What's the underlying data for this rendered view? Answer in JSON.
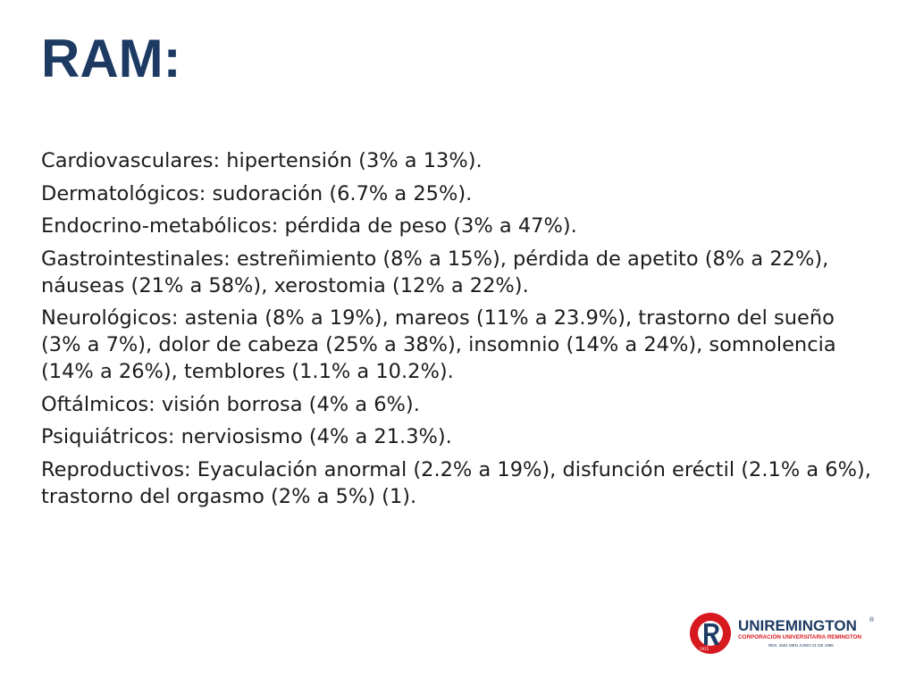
{
  "slide": {
    "title": "RAM:",
    "paragraphs": [
      "Cardiovasculares: hipertensión (3% a 13%).",
      "Dermatológicos: sudoración (6.7% a 25%).",
      "Endocrino-metabólicos: pérdida de peso (3% a 47%).",
      "Gastrointestinales: estreñimiento (8% a 15%), pérdida de apetito (8% a 22%), náuseas (21% a 58%), xerostomia (12% a 22%).",
      "Neurológicos: astenia (8% a 19%), mareos (11% a 23.9%), trastorno del sueño (3% a 7%), dolor de cabeza (25% a 38%), insomnio (14% a 24%), somnolencia (14% a 26%), temblores (1.1% a 10.2%).",
      "Oftálmicos: visión borrosa (4% a 6%).",
      "Psiquiátricos: nerviosismo (4% a 21.3%).",
      "Reproductivos: Eyaculación anormal (2.2% a 19%), disfunción eréctil (2.1% a 6%), trastorno del orgasmo (2% a 5%) (1)."
    ]
  },
  "logo": {
    "name": "UNIREMINGTON",
    "registered": "®",
    "subtitle": "CORPORACIÓN UNIVERSITARIA REMINGTON",
    "resolution": "RES. 2661 MEN JUNIO 21 DE 1996",
    "year": "1915",
    "colors": {
      "red": "#d71920",
      "navy": "#1d3a63"
    }
  },
  "colors": {
    "title": "#1d3a63",
    "text": "#1c1c1c",
    "background": "#ffffff"
  }
}
